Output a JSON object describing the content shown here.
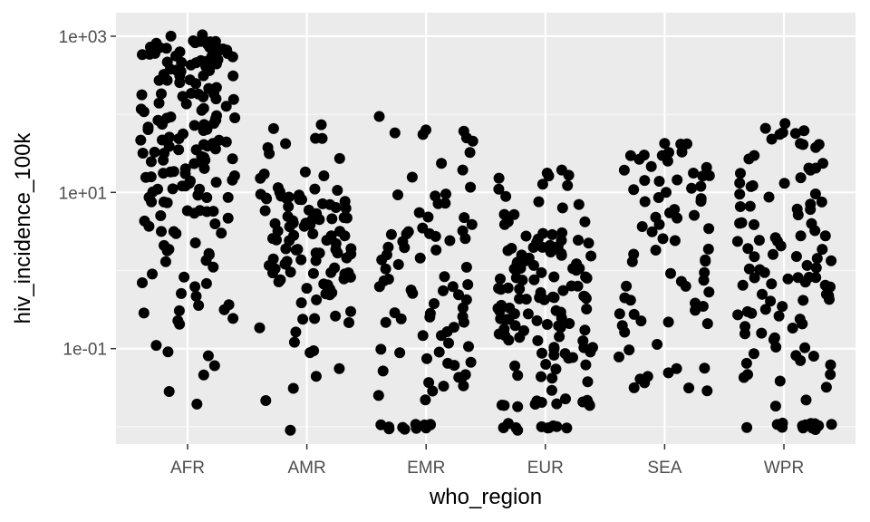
{
  "chart_data": {
    "type": "scatter",
    "title": "",
    "xlabel": "who_region",
    "ylabel": "hiv_incidence_100k",
    "y_scale": "log10",
    "ylim": [
      0.006,
      2000
    ],
    "grid": true,
    "categories": [
      "AFR",
      "AMR",
      "EMR",
      "EUR",
      "SEA",
      "WPR"
    ],
    "y_ticks": [
      {
        "value": 0.1,
        "label": "1e-01"
      },
      {
        "value": 10,
        "label": "1e+01"
      },
      {
        "value": 1000,
        "label": "1e+03"
      }
    ],
    "y_minor_ticks": [
      0.01,
      1,
      100
    ],
    "jitter_width": 0.4,
    "groups": [
      {
        "category": "AFR",
        "points": [
          1000,
          950,
          900,
          880,
          850,
          820,
          800,
          780,
          760,
          740,
          720,
          700,
          680,
          650,
          620,
          600,
          580,
          560,
          540,
          520,
          500,
          480,
          460,
          440,
          420,
          400,
          380,
          360,
          340,
          320,
          300,
          280,
          260,
          240,
          220,
          200,
          190,
          180,
          170,
          160,
          150,
          140,
          130,
          120,
          110,
          100,
          95,
          90,
          85,
          80,
          75,
          70,
          65,
          60,
          55,
          50,
          48,
          45,
          42,
          40,
          38,
          35,
          32,
          30,
          28,
          26,
          24,
          22,
          20,
          19,
          18,
          17,
          16,
          15,
          14,
          13,
          12,
          11,
          10,
          9,
          8,
          7,
          6,
          5.5,
          5,
          4.5,
          4,
          3.5,
          3,
          2.5,
          2.2,
          2,
          1.8,
          1.6,
          1.4,
          1.2,
          1,
          0.9,
          0.8,
          0.7,
          0.6,
          0.5,
          0.45,
          0.4,
          0.35,
          0.3,
          0.28,
          0.25,
          0.22,
          0.2,
          0.12,
          0.1,
          0.09,
          0.06,
          0.05,
          0.03,
          0.02,
          800,
          700,
          600,
          500,
          400,
          300,
          250,
          200,
          150,
          100,
          80,
          60,
          50,
          40,
          30,
          25,
          20,
          15,
          12,
          10,
          8,
          6,
          5,
          700,
          500,
          350,
          250,
          180,
          120,
          90,
          70,
          45,
          35,
          28,
          18,
          14,
          9,
          7,
          4,
          3,
          900,
          650,
          450,
          330,
          230,
          160,
          110,
          85,
          62,
          44,
          33,
          23,
          16,
          11,
          8.5,
          6.5,
          4.2,
          2.8,
          1.5,
          0.75,
          0.33
        ]
      },
      {
        "category": "AMR",
        "points": [
          70,
          60,
          50,
          45,
          40,
          35,
          30,
          25,
          20,
          18,
          16,
          14,
          12,
          11,
          10,
          9.5,
          9,
          8.5,
          8,
          7.5,
          7,
          6.5,
          6,
          5.5,
          5,
          4.8,
          4.5,
          4.2,
          4,
          3.8,
          3.5,
          3.2,
          3,
          2.8,
          2.6,
          2.4,
          2.2,
          2,
          1.9,
          1.8,
          1.7,
          1.6,
          1.5,
          1.4,
          1.3,
          1.2,
          1.1,
          1,
          0.95,
          0.9,
          0.85,
          0.8,
          0.75,
          0.7,
          0.65,
          0.6,
          0.55,
          0.5,
          0.45,
          0.4,
          0.35,
          0.3,
          0.28,
          0.25,
          0.22,
          0.2,
          0.18,
          0.15,
          0.12,
          0.1,
          0.08,
          0.05,
          0.04,
          0.03,
          0.02,
          0.01,
          12,
          10,
          9,
          8,
          7,
          6,
          5,
          4.5,
          4,
          3.5,
          3,
          2.5,
          2,
          1.8,
          1.5,
          1.2,
          1,
          0.9,
          0.8,
          11,
          9.2,
          7.7,
          6.3,
          5.3,
          4.4,
          3.7,
          3.1,
          2.7,
          2.3,
          1.95,
          1.65,
          1.35,
          1.15,
          0.98,
          0.88,
          0.72,
          0.62
        ]
      },
      {
        "category": "EMR",
        "points": [
          90,
          70,
          65,
          60,
          55,
          50,
          45,
          30,
          25,
          20,
          15,
          12,
          10,
          9,
          8,
          7,
          6,
          5,
          4.5,
          4,
          3.5,
          3,
          2.8,
          2.5,
          2.2,
          2,
          1.8,
          1.6,
          1.4,
          1.2,
          1,
          0.9,
          0.8,
          0.7,
          0.6,
          0.55,
          0.5,
          0.45,
          0.4,
          0.35,
          0.3,
          0.28,
          0.25,
          0.22,
          0.2,
          0.18,
          0.16,
          0.14,
          0.12,
          0.1,
          0.09,
          0.08,
          0.07,
          0.06,
          0.05,
          0.045,
          0.04,
          0.035,
          0.03,
          0.025,
          0.02,
          0.01,
          0.01,
          0.01,
          0.01,
          0.01,
          0.01,
          0.01,
          0.01,
          0.01,
          0.01,
          0.01,
          9,
          3,
          3,
          3,
          3,
          3,
          2,
          1.5,
          1,
          0.8,
          0.6,
          0.5,
          0.4,
          0.3,
          0.2,
          0.15,
          0.1,
          0.08,
          0.06,
          0.05,
          0.04,
          0.03
        ]
      },
      {
        "category": "EUR",
        "points": [
          20,
          18,
          16,
          15,
          14,
          12,
          11,
          10,
          9,
          8,
          7,
          6,
          5.5,
          5,
          4.5,
          4,
          3.5,
          3,
          2.8,
          2.6,
          2.4,
          2.2,
          2,
          1.9,
          1.8,
          1.7,
          1.6,
          1.5,
          1.4,
          1.3,
          1.2,
          1.1,
          1,
          0.95,
          0.9,
          0.85,
          0.8,
          0.75,
          0.7,
          0.65,
          0.6,
          0.55,
          0.5,
          0.48,
          0.45,
          0.42,
          0.4,
          0.38,
          0.35,
          0.32,
          0.3,
          0.28,
          0.26,
          0.24,
          0.22,
          0.2,
          0.19,
          0.18,
          0.17,
          0.16,
          0.15,
          0.14,
          0.13,
          0.12,
          0.11,
          0.1,
          0.09,
          0.08,
          0.07,
          0.06,
          0.05,
          0.04,
          0.035,
          0.03,
          0.025,
          0.02,
          0.02,
          0.02,
          0.02,
          0.02,
          0.02,
          0.02,
          0.02,
          0.02,
          0.02,
          0.02,
          0.01,
          0.01,
          0.01,
          0.01,
          0.01,
          0.01,
          0.01,
          0.01,
          0.01,
          0.01,
          3,
          2.5,
          2,
          1.5,
          1.2,
          1,
          0.8,
          0.6,
          0.5,
          0.4,
          0.3,
          0.25,
          0.2,
          0.15,
          0.1,
          0.08,
          0.06,
          0.05,
          2.7,
          2.1,
          1.75,
          1.45,
          1.25,
          1.05,
          0.88,
          0.72,
          0.58,
          0.47,
          0.39,
          0.31,
          0.26,
          0.21,
          0.17,
          0.13,
          0.105,
          0.085,
          0.065,
          0.045,
          2.3,
          1.65,
          1.15,
          0.82,
          0.63,
          0.44,
          0.33,
          0.23,
          0.165,
          0.115
        ]
      },
      {
        "category": "SEA",
        "points": [
          40,
          38,
          35,
          32,
          30,
          28,
          25,
          22,
          20,
          18,
          16,
          15,
          14,
          12,
          11,
          10,
          9,
          8,
          7,
          6,
          5.5,
          5,
          4.5,
          4,
          3.5,
          3,
          2.5,
          2,
          1.8,
          1.6,
          1.4,
          1.2,
          1,
          0.9,
          0.8,
          0.7,
          0.6,
          0.5,
          0.45,
          0.4,
          0.35,
          0.3,
          0.28,
          0.25,
          0.22,
          0.2,
          0.18,
          0.15,
          0.12,
          0.1,
          0.08,
          0.06,
          0.05,
          0.04,
          0.03,
          0.03,
          0.04,
          0.05,
          0.04,
          0.03,
          42,
          36,
          30,
          26,
          21,
          17,
          13,
          9.5,
          7.5,
          5.2,
          3.6,
          2.2,
          1.3,
          0.65,
          0.42,
          0.27
        ]
      },
      {
        "category": "WPR",
        "points": [
          80,
          70,
          60,
          55,
          50,
          45,
          40,
          35,
          30,
          25,
          20,
          18,
          16,
          14,
          12,
          11,
          10,
          9,
          8,
          7,
          6,
          5.5,
          5,
          4.5,
          4,
          3.5,
          3,
          2.8,
          2.6,
          2.4,
          2.2,
          2,
          1.8,
          1.6,
          1.5,
          1.4,
          1.3,
          1.2,
          1.1,
          1,
          0.95,
          0.9,
          0.85,
          0.8,
          0.75,
          0.7,
          0.65,
          0.6,
          0.55,
          0.5,
          0.45,
          0.4,
          0.35,
          0.3,
          0.28,
          0.25,
          0.22,
          0.2,
          0.18,
          0.16,
          0.14,
          0.12,
          0.1,
          0.09,
          0.08,
          0.07,
          0.06,
          0.05,
          0.04,
          0.03,
          0.02,
          0.02,
          0.01,
          0.01,
          0.01,
          0.01,
          0.01,
          0.01,
          0.01,
          0.01,
          0.01,
          0.01,
          0.01,
          0.01,
          0.01,
          0.01,
          65,
          48,
          37,
          28,
          21,
          16,
          13,
          9.5,
          7.5,
          5.8,
          4.2,
          3.2,
          2.3,
          1.75,
          1.35,
          1.05,
          0.87,
          0.73,
          0.62,
          0.52,
          0.43,
          0.33,
          0.26,
          0.19,
          0.15,
          0.11,
          0.085,
          0.065,
          0.045,
          0.035
        ]
      }
    ]
  }
}
